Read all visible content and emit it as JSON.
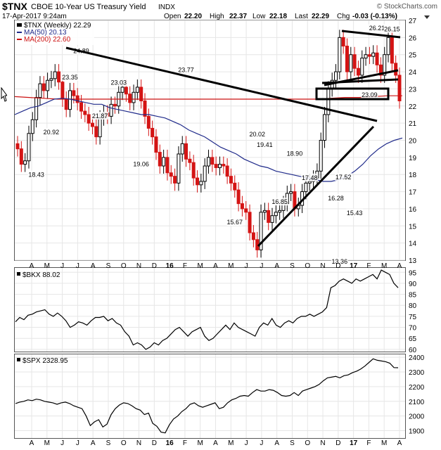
{
  "header": {
    "symbol": "$TNX",
    "name": "CBOE 10-Year US Treasury Yield",
    "exchange": "INDX",
    "source": "© StockCharts.com",
    "date": "17-Apr-2017 9:24am",
    "open_label": "Open",
    "open": "22.20",
    "high_label": "High",
    "high": "22.37",
    "low_label": "Low",
    "low": "22.18",
    "last_label": "Last",
    "last": "22.29",
    "chg_label": "Chg",
    "chg": "-0.03 (-0.13%)"
  },
  "main_panel": {
    "legend_series": "$TNX (Weekly) 22.29",
    "legend_ma50": "MA(50) 20.13",
    "legend_ma200": "MA(200) 22.60",
    "ma50_color": "#1f2a8a",
    "ma200_color": "#cc1111",
    "up_color": "#000000",
    "down_color": "#d41414"
  },
  "bkx_panel": {
    "legend": "$BKX 88.02"
  },
  "spx_panel": {
    "legend": "$SPX 2328.95"
  },
  "chart_data": [
    {
      "type": "candlestick",
      "title": "$TNX (Weekly)",
      "ylim": [
        13,
        27
      ],
      "y_ticks": [
        13,
        14,
        15,
        16,
        17,
        18,
        19,
        20,
        21,
        22,
        23,
        24,
        25,
        26,
        27
      ],
      "x_axis_labels": [
        "A",
        "M",
        "J",
        "J",
        "A",
        "S",
        "O",
        "N",
        "D",
        "16",
        "F",
        "M",
        "A",
        "M",
        "J",
        "J",
        "A",
        "S",
        "O",
        "N",
        "D",
        "17",
        "F",
        "M",
        "A"
      ],
      "close": [
        19.5,
        18.6,
        18.8,
        20.4,
        21.2,
        22.5,
        23.3,
        22.9,
        23.5,
        23.6,
        24.0,
        23.4,
        22.4,
        21.8,
        22.9,
        22.6,
        22.2,
        21.7,
        21.5,
        21.0,
        20.8,
        20.2,
        21.3,
        21.6,
        21.4,
        22.1,
        22.0,
        22.8,
        23.1,
        22.7,
        22.2,
        22.8,
        23.1,
        22.3,
        21.4,
        20.7,
        20.2,
        19.3,
        18.5,
        19.0,
        18.1,
        17.9,
        17.5,
        19.2,
        19.8,
        18.9,
        18.7,
        17.8,
        17.4,
        17.6,
        18.5,
        19.0,
        18.6,
        18.4,
        18.6,
        18.5,
        17.9,
        17.5,
        17.1,
        16.3,
        16.0,
        15.8,
        14.6,
        14.2,
        13.6,
        15.8,
        15.9,
        15.2,
        15.6,
        15.8,
        15.9,
        16.3,
        16.9,
        17.0,
        16.0,
        16.2,
        17.0,
        17.5,
        17.6,
        17.8,
        18.2,
        20.0,
        21.5,
        23.0,
        23.5,
        24.0,
        26.0,
        25.5,
        24.0,
        25.0,
        24.2,
        23.8,
        24.8,
        25.0,
        24.9,
        25.1,
        24.4,
        23.8,
        25.0,
        26.0,
        24.5,
        23.8,
        22.3
      ],
      "ma50": [
        21.5,
        21.7,
        21.9,
        22.0,
        22.2,
        22.4,
        22.45,
        22.4,
        22.3,
        22.2,
        22.1,
        22.1,
        21.9,
        21.8,
        21.7,
        21.6,
        21.5,
        21.5,
        21.4,
        21.3,
        21.1,
        20.9,
        20.6,
        20.4,
        20.2,
        19.9,
        19.6,
        19.4,
        19.2,
        18.9,
        18.7,
        18.5,
        18.4,
        18.2,
        18.1,
        18.0,
        17.9,
        17.8,
        17.7,
        17.6,
        17.6,
        17.7,
        17.9,
        18.2,
        18.6,
        19.1,
        19.5,
        19.8,
        20.0,
        20.13
      ],
      "ma200": [
        22.55,
        22.5,
        22.45,
        22.4,
        22.4,
        22.4,
        22.4,
        22.4,
        22.4,
        22.4,
        22.4,
        22.4,
        22.4,
        22.4,
        22.4,
        22.4,
        22.4,
        22.4,
        22.4,
        22.4,
        22.4,
        22.4,
        22.45,
        22.5,
        22.5,
        22.55,
        22.6,
        22.6
      ],
      "annotations": [
        {
          "label": "18.43",
          "value": 18.43
        },
        {
          "label": "20.92",
          "value": 20.92
        },
        {
          "label": "23.35",
          "value": 23.35
        },
        {
          "label": "24.89",
          "value": 24.89
        },
        {
          "label": "21.87",
          "value": 21.87
        },
        {
          "label": "23.03",
          "value": 23.03
        },
        {
          "label": "19.06",
          "value": 19.06
        },
        {
          "label": "23.77",
          "value": 23.77
        },
        {
          "label": "15.67",
          "value": 15.67
        },
        {
          "label": "20.02",
          "value": 20.02
        },
        {
          "label": "16.85",
          "value": 16.85
        },
        {
          "label": "19.41",
          "value": 19.41
        },
        {
          "label": "18.90",
          "value": 18.9
        },
        {
          "label": "17.48",
          "value": 17.48
        },
        {
          "label": "16.28",
          "value": 16.28
        },
        {
          "label": "13.36",
          "value": 13.36
        },
        {
          "label": "17.52",
          "value": 17.52
        },
        {
          "label": "15.43",
          "value": 15.43
        },
        {
          "label": "23.09",
          "value": 23.09
        },
        {
          "label": "26.21",
          "value": 26.21
        },
        {
          "label": "26.15",
          "value": 26.15
        }
      ]
    },
    {
      "type": "line",
      "title": "$BKX",
      "ylim": [
        59,
        97
      ],
      "y_ticks": [
        60,
        65,
        70,
        75,
        80,
        85,
        90,
        95
      ],
      "values": [
        72.5,
        74.5,
        73.5,
        75.5,
        76,
        77,
        77.5,
        78,
        76,
        75,
        76.5,
        75,
        73,
        70,
        71,
        72.5,
        72,
        71,
        73,
        74.5,
        74.5,
        75,
        73,
        74,
        72,
        71,
        68,
        66,
        62,
        63,
        62,
        60,
        61,
        63,
        62,
        64,
        65,
        67,
        69,
        70,
        68,
        66,
        68,
        69,
        70,
        66,
        64,
        65,
        67,
        69,
        71,
        69,
        72,
        70,
        69,
        68,
        67,
        66,
        70,
        72,
        71,
        74,
        71,
        70,
        72,
        73,
        72,
        74,
        75,
        75,
        76,
        75,
        76,
        77,
        79,
        88,
        89,
        91,
        92,
        91,
        90,
        92,
        91,
        92,
        93,
        94,
        92,
        96,
        95,
        94,
        90,
        88
      ]
    },
    {
      "type": "line",
      "title": "$SPX",
      "ylim": [
        1850,
        2420
      ],
      "y_ticks": [
        1900,
        2000,
        2100,
        2200,
        2300,
        2400
      ],
      "values": [
        2085,
        2095,
        2100,
        2110,
        2105,
        2115,
        2110,
        2100,
        2095,
        2090,
        2080,
        2090,
        2095,
        2085,
        2070,
        2060,
        2050,
        2000,
        1935,
        1960,
        1975,
        1925,
        1945,
        2010,
        2050,
        2075,
        2090,
        2085,
        2070,
        2050,
        2040,
        2010,
        2020,
        1950,
        1930,
        1890,
        1885,
        1940,
        1980,
        2000,
        2030,
        2050,
        2080,
        2090,
        2070,
        2060,
        2070,
        2080,
        2090,
        2050,
        2060,
        2090,
        2110,
        2120,
        2135,
        2140,
        2135,
        2160,
        2180,
        2170,
        2170,
        2180,
        2175,
        2160,
        2140,
        2135,
        2140,
        2160,
        2140,
        2170,
        2180,
        2190,
        2200,
        2215,
        2240,
        2260,
        2265,
        2270,
        2260,
        2275,
        2280,
        2295,
        2305,
        2320,
        2340,
        2365,
        2390,
        2380,
        2375,
        2370,
        2360,
        2330,
        2328.95
      ]
    }
  ]
}
